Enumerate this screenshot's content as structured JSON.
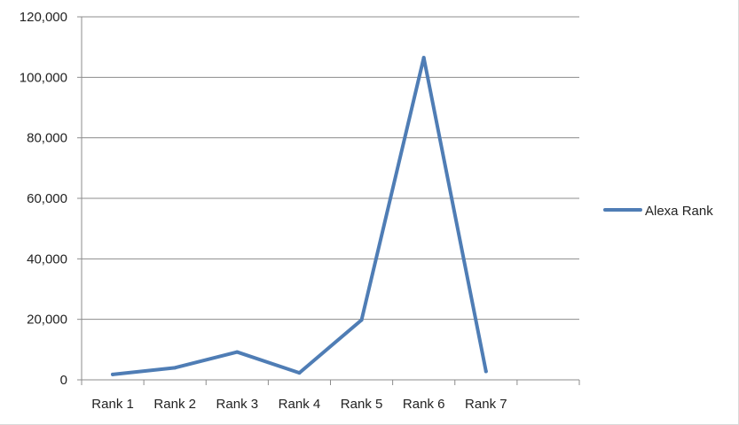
{
  "chart_data": {
    "type": "line",
    "categories": [
      "Rank 1",
      "Rank 2",
      "Rank 3",
      "Rank 4",
      "Rank 5",
      "Rank 6",
      "Rank 7"
    ],
    "series": [
      {
        "name": "Alexa Rank",
        "values": [
          1800,
          4000,
          9200,
          2300,
          19800,
          106500,
          2800
        ],
        "color": "#4f7db5"
      }
    ],
    "y_ticks": [
      "0",
      "20,000",
      "40,000",
      "60,000",
      "80,000",
      "100,000",
      "120,000"
    ],
    "ylim": [
      0,
      120000
    ],
    "grid": true,
    "legend": "right"
  }
}
